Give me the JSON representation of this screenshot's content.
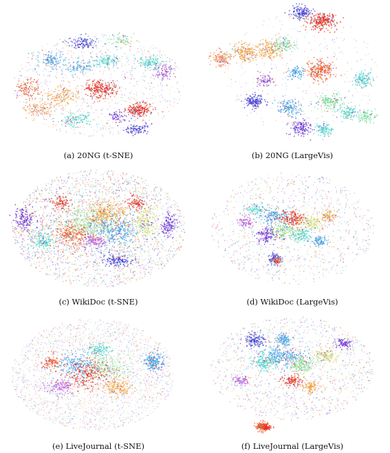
{
  "chart_data": [
    {
      "type": "scatter",
      "caption": "(a) 20NG (t-SNE)",
      "dataset": "20NG",
      "method": "t-SNE",
      "panel": "a",
      "colors": [
        "#3a3ad6",
        "#6a2bd9",
        "#3fa0e6",
        "#49d6c8",
        "#7de0a0",
        "#f05a28",
        "#e62e1e",
        "#f7a03c",
        "#f28a50",
        "#9b59d6"
      ]
    },
    {
      "type": "scatter",
      "caption": "(b) 20NG (LargeVis)",
      "dataset": "20NG",
      "method": "LargeVis",
      "panel": "b",
      "colors": [
        "#3a3ad6",
        "#6a2bd9",
        "#3fa0e6",
        "#49d6c8",
        "#7de0a0",
        "#f05a28",
        "#e62e1e",
        "#f7a03c",
        "#f28a50",
        "#9b59d6"
      ]
    },
    {
      "type": "scatter",
      "caption": "(c) WikiDoc (t-SNE)",
      "dataset": "WikiDoc",
      "method": "t-SNE",
      "panel": "c",
      "colors": [
        "#3a3ad6",
        "#6a2bd9",
        "#3fa0e6",
        "#49d6c8",
        "#9be29a",
        "#f05a28",
        "#e62e1e",
        "#f7a03c",
        "#d6e27a",
        "#c060e0"
      ]
    },
    {
      "type": "scatter",
      "caption": "(d) WikiDoc (LargeVis)",
      "dataset": "WikiDoc",
      "method": "LargeVis",
      "panel": "d",
      "colors": [
        "#3a3ad6",
        "#6a2bd9",
        "#3fa0e6",
        "#49d6c8",
        "#9be29a",
        "#f05a28",
        "#e62e1e",
        "#f7a03c",
        "#d6e27a",
        "#c060e0"
      ]
    },
    {
      "type": "scatter",
      "caption": "(e) LiveJournal (t-SNE)",
      "dataset": "LiveJournal",
      "method": "t-SNE",
      "panel": "e",
      "colors": [
        "#3a3ad6",
        "#6a2bd9",
        "#3fa0e6",
        "#49d6c8",
        "#9be29a",
        "#f05a28",
        "#e62e1e",
        "#f7a03c",
        "#d6e27a",
        "#c060e0"
      ]
    },
    {
      "type": "scatter",
      "caption": "(f) LiveJournal (LargeVis)",
      "dataset": "LiveJournal",
      "method": "LargeVis",
      "panel": "f",
      "colors": [
        "#3a3ad6",
        "#6a2bd9",
        "#3fa0e6",
        "#49d6c8",
        "#9be29a",
        "#f05a28",
        "#e62e1e",
        "#f7a03c",
        "#d6e27a",
        "#c060e0"
      ]
    }
  ]
}
